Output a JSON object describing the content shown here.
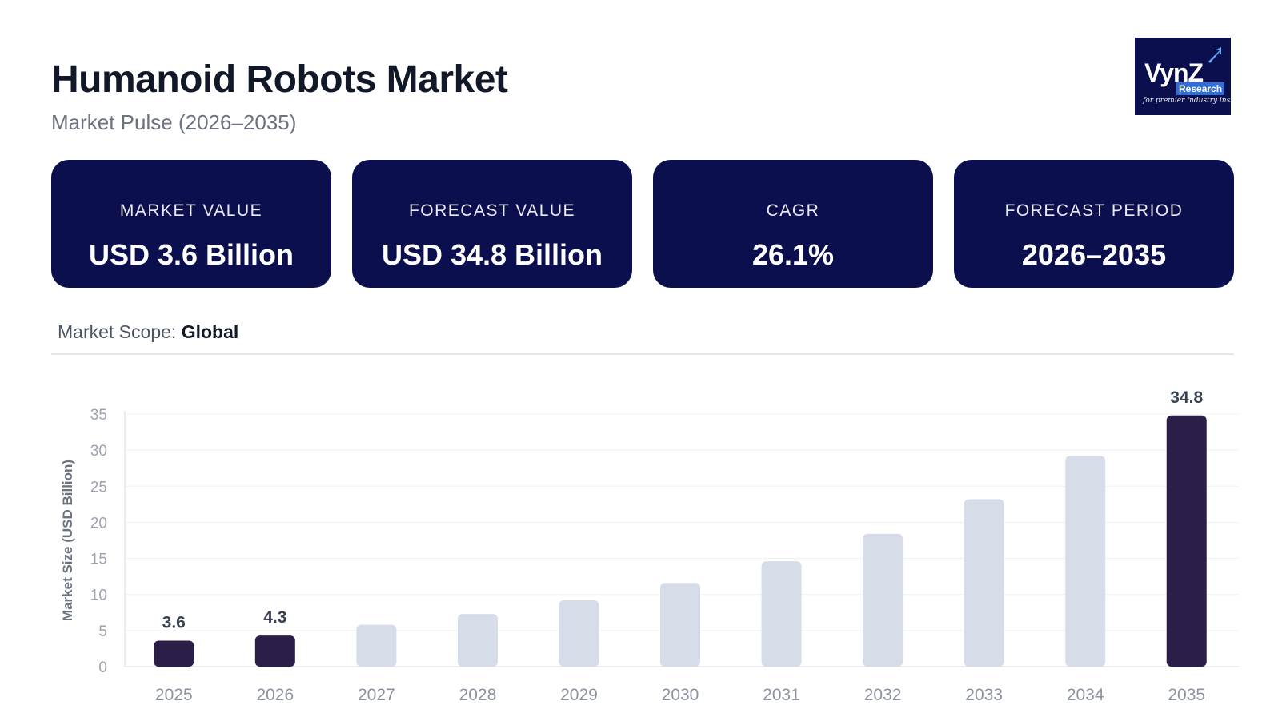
{
  "header": {
    "title": "Humanoid Robots Market",
    "subtitle": "Market Pulse (2026–2035)"
  },
  "logo": {
    "name": "VynZ",
    "sub": "Research",
    "tagline": "for premier industry insights"
  },
  "cards": [
    {
      "label": "MARKET VALUE",
      "value": "USD 3.6 Billion"
    },
    {
      "label": "FORECAST VALUE",
      "value": "USD 34.8 Billion"
    },
    {
      "label": "CAGR",
      "value": "26.1%"
    },
    {
      "label": "FORECAST PERIOD",
      "value": "2026–2035"
    }
  ],
  "scope": {
    "label": "Market Scope:",
    "value": "Global"
  },
  "colors": {
    "card_bg": "#0b0f4e",
    "highlight_bar": "#2b1f4a",
    "muted_bar": "#d6dde8"
  },
  "chart_data": {
    "type": "bar",
    "categories": [
      "2025",
      "2026",
      "2027",
      "2028",
      "2029",
      "2030",
      "2031",
      "2032",
      "2033",
      "2034",
      "2035"
    ],
    "values": [
      3.6,
      4.3,
      5.8,
      7.3,
      9.2,
      11.6,
      14.6,
      18.4,
      23.2,
      29.2,
      34.8
    ],
    "highlighted": [
      true,
      true,
      false,
      false,
      false,
      false,
      false,
      false,
      false,
      false,
      true
    ],
    "data_labels": [
      "3.6",
      "4.3",
      "",
      "",
      "",
      "",
      "",
      "",
      "",
      "",
      "34.8"
    ],
    "ylabel": "Market Size (USD Billion)",
    "xlabel": "",
    "ylim": [
      0,
      35
    ],
    "yticks": [
      0,
      5,
      10,
      15,
      20,
      25,
      30,
      35
    ],
    "grid": true
  }
}
